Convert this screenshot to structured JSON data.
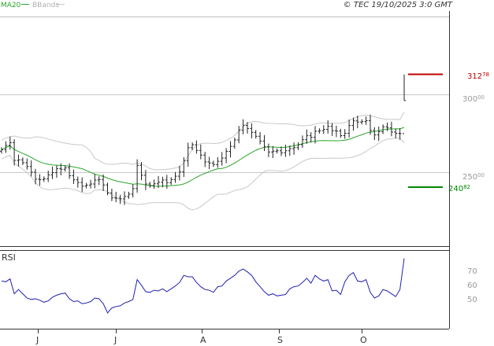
{
  "header": {
    "legend_ma": "MA20",
    "legend_bbands": "BBands",
    "copyright": "© TEC 19/10/2025 3:0 GMT"
  },
  "rsi_panel": {
    "label": "RSI"
  },
  "colors": {
    "price_bar": "#222222",
    "ma20": "#2aa52a",
    "bbands": "#c8c8c8",
    "rsi_line": "#2020b0",
    "resistance": "#c00000",
    "support": "#008800",
    "grid": "#c0c0c0",
    "axis_text": "#9a9a9a"
  },
  "chart_data": [
    {
      "type": "ohlc",
      "title": "",
      "y_ticks": [
        {
          "main": "300",
          "sup": "00",
          "value": 300
        },
        {
          "main": "250",
          "sup": "00",
          "value": 250
        }
      ],
      "ylim": [
        210,
        320
      ],
      "x_labels": [
        "J",
        "J",
        "A",
        "S",
        "O"
      ],
      "levels": [
        {
          "name": "resistance",
          "main": "312",
          "sup": "78",
          "value": 312.78,
          "color": "#c00000"
        },
        {
          "name": "support",
          "main": "240",
          "sup": "82",
          "value": 240.82,
          "color": "#008800"
        }
      ],
      "series": [
        {
          "name": "MA20",
          "color": "#2aa52a"
        },
        {
          "name": "BBands",
          "color": "#c8c8c8"
        }
      ],
      "close": [
        264.5,
        267.2,
        269.0,
        257.6,
        258.0,
        256.1,
        253.7,
        250.0,
        245.5,
        245.3,
        245.8,
        248.3,
        249.7,
        252.3,
        251.9,
        252.9,
        247.8,
        245.1,
        243.4,
        241.1,
        241.7,
        242.4,
        245.0,
        245.3,
        241.8,
        236.7,
        233.5,
        233.4,
        232.9,
        234.4,
        235.9,
        239.5,
        254.4,
        248.1,
        242.4,
        241.5,
        242.6,
        243.6,
        245.0,
        243.3,
        245.3,
        247.4,
        250.2,
        257.5,
        265.7,
        267.7,
        264.0,
        261.0,
        256.6,
        255.9,
        254.9,
        257.0,
        259.1,
        263.4,
        266.6,
        270.7,
        277.0,
        280.1,
        278.1,
        275.6,
        273.1,
        270.0,
        266.3,
        263.0,
        263.5,
        263.8,
        262.5,
        263.8,
        265.1,
        265.8,
        267.7,
        270.9,
        273.6,
        272.4,
        276.3,
        276.7,
        277.5,
        279.5,
        276.6,
        276.4,
        273.5,
        275.0,
        280.0,
        283.0,
        282.2,
        282.5,
        283.1,
        276.8,
        274.0,
        276.0,
        279.2,
        278.5,
        275.8,
        275.0,
        274.8,
        296.0
      ]
    },
    {
      "type": "line",
      "title": "",
      "ylabel": "RSI",
      "y_ticks": [
        {
          "label": "70",
          "value": 70
        },
        {
          "label": "60",
          "value": 60
        },
        {
          "label": "50",
          "value": 50
        }
      ],
      "ylim": [
        25,
        85
      ],
      "values": [
        62.0,
        61.5,
        63.5,
        53.0,
        56.0,
        53.0,
        50.0,
        49.0,
        49.5,
        48.5,
        47.0,
        48.0,
        50.5,
        52.0,
        53.0,
        53.5,
        49.5,
        47.5,
        48.0,
        46.0,
        46.5,
        47.5,
        50.0,
        49.5,
        46.0,
        39.5,
        43.0,
        44.0,
        44.5,
        46.5,
        47.5,
        49.0,
        63.0,
        59.0,
        54.5,
        54.0,
        55.5,
        55.0,
        56.5,
        54.5,
        56.5,
        58.5,
        61.0,
        66.0,
        65.0,
        65.0,
        61.0,
        58.0,
        56.0,
        55.5,
        54.0,
        58.0,
        58.5,
        62.0,
        64.0,
        66.0,
        69.0,
        70.5,
        68.5,
        66.0,
        61.5,
        58.0,
        54.5,
        52.0,
        53.0,
        51.5,
        52.0,
        52.5,
        56.5,
        58.0,
        58.5,
        61.0,
        64.0,
        60.5,
        66.0,
        63.5,
        62.0,
        63.0,
        55.0,
        55.5,
        52.5,
        61.5,
        66.0,
        68.0,
        62.0,
        61.5,
        63.0,
        54.0,
        50.0,
        51.5,
        56.0,
        55.0,
        53.0,
        51.0,
        56.0,
        78.0
      ]
    }
  ]
}
